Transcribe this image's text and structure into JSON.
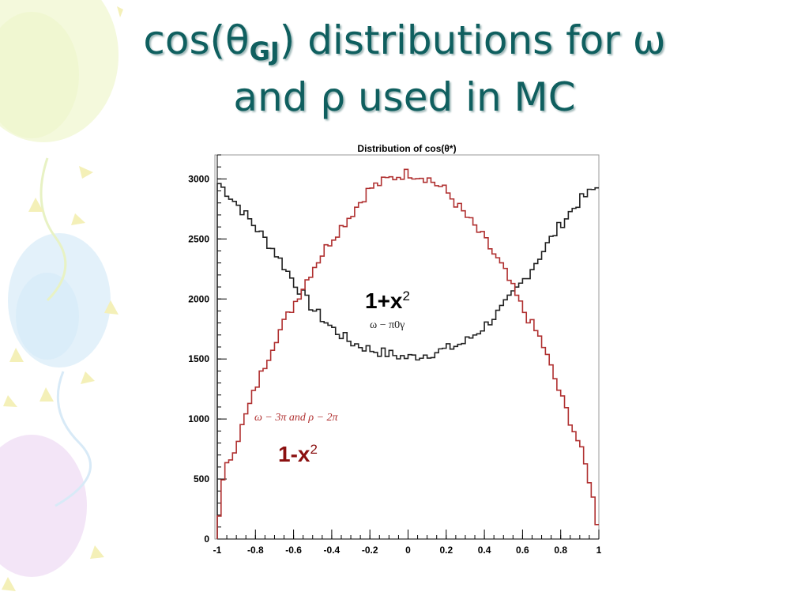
{
  "slide": {
    "title_line1_pre": "cos(θ",
    "title_sub": "GJ",
    "title_line1_post": ") distributions for ω",
    "title_line2": "and ρ used in MC"
  },
  "colors": {
    "title": "#0f5f5f",
    "omega_series": "#222222",
    "rho_series": "#b03030",
    "annotation_red": "#8b1010"
  },
  "chart_data": {
    "type": "line",
    "title": "Distribution of cos(θ*)",
    "xlabel": "",
    "ylabel": "",
    "xlim": [
      -1,
      1
    ],
    "ylim": [
      0,
      3200
    ],
    "x_ticks": [
      "-1",
      "-0.8",
      "-0.6",
      "-0.4",
      "-0.2",
      "0",
      "0.2",
      "0.4",
      "0.6",
      "0.8",
      "1"
    ],
    "y_ticks": [
      "0",
      "500",
      "1000",
      "1500",
      "2000",
      "2500",
      "3000"
    ],
    "grid": false,
    "step_histogram": true,
    "series": [
      {
        "name": "ω − π0γ",
        "color": "#222222",
        "x": [
          -1.0,
          -0.9,
          -0.8,
          -0.7,
          -0.6,
          -0.5,
          -0.4,
          -0.3,
          -0.2,
          -0.1,
          0.0,
          0.1,
          0.2,
          0.3,
          0.4,
          0.5,
          0.6,
          0.7,
          0.8,
          0.9,
          1.0
        ],
        "y": [
          2980,
          2800,
          2600,
          2400,
          2150,
          1920,
          1760,
          1640,
          1580,
          1540,
          1510,
          1540,
          1580,
          1640,
          1770,
          1930,
          2140,
          2380,
          2620,
          2820,
          2940
        ]
      },
      {
        "name": "ω − 3π and ρ − 2π",
        "color": "#b03030",
        "x": [
          -1.0,
          -0.98,
          -0.95,
          -0.9,
          -0.8,
          -0.7,
          -0.6,
          -0.5,
          -0.4,
          -0.3,
          -0.2,
          -0.1,
          0.0,
          0.1,
          0.2,
          0.3,
          0.4,
          0.5,
          0.6,
          0.7,
          0.8,
          0.9,
          0.95,
          0.98,
          1.0
        ],
        "y": [
          50,
          400,
          600,
          800,
          1250,
          1650,
          1950,
          2250,
          2500,
          2700,
          2920,
          3000,
          3050,
          3010,
          2900,
          2700,
          2500,
          2250,
          1920,
          1650,
          1200,
          780,
          500,
          250,
          50
        ]
      }
    ],
    "annotations": [
      {
        "label": "1+x",
        "sup": "2",
        "sub_label": "ω − π0γ"
      },
      {
        "label": "1-x",
        "sup": "2",
        "sub_label": "ω − 3π and ρ − 2π"
      }
    ]
  }
}
